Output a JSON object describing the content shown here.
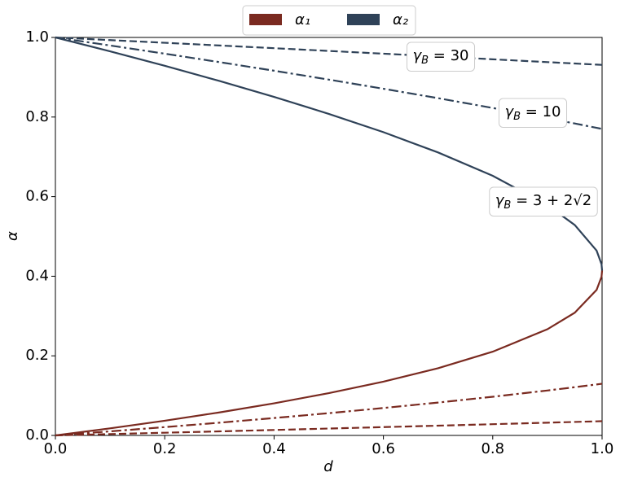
{
  "chart_data": {
    "type": "line",
    "xlabel": "d",
    "ylabel": "α",
    "xlim": [
      0,
      1
    ],
    "ylim": [
      0,
      1
    ],
    "xticks": [
      {
        "value": 0,
        "label": "0.0"
      },
      0.2,
      0.4,
      0.6,
      0.8,
      {
        "value": 1,
        "label": "1.0"
      }
    ],
    "yticks": [
      {
        "value": 0,
        "label": "0.0"
      },
      0.2,
      0.4,
      0.6,
      0.8,
      {
        "value": 1,
        "label": "1.0"
      }
    ],
    "grid": false,
    "legend_position": "top",
    "legend": [
      {
        "name": "α₁",
        "color": "#7a2a20"
      },
      {
        "name": "α₂",
        "color": "#2f4258"
      }
    ],
    "x": [
      0,
      0.1,
      0.2,
      0.3,
      0.4,
      0.5,
      0.6,
      0.7,
      0.8,
      0.9,
      0.95,
      0.99,
      0.999,
      1
    ],
    "curves": [
      {
        "label": [
          "γ",
          "B",
          " = 3 + 2√2"
        ],
        "dash": "solid",
        "alpha1": [
          0,
          0.0178,
          0.0369,
          0.0578,
          0.0807,
          0.1062,
          0.1351,
          0.1689,
          0.2104,
          0.2668,
          0.3083,
          0.3658,
          0.3984,
          0.4142
        ],
        "alpha2": [
          1,
          0.9651,
          0.9287,
          0.8907,
          0.8507,
          0.808,
          0.762,
          0.711,
          0.6523,
          0.5788,
          0.5287,
          0.4643,
          0.4303,
          0.4142
        ]
      },
      {
        "label": [
          "γ",
          "B",
          " = 10"
        ],
        "dash": "dashdot",
        "alpha1": [
          0,
          0.0102,
          0.0209,
          0.032,
          0.0437,
          0.0559,
          0.0689,
          0.0826,
          0.0972,
          0.1129,
          0.1212,
          0.1281,
          0.1297,
          0.1298
        ],
        "alpha2": [
          1,
          0.9798,
          0.9592,
          0.938,
          0.9164,
          0.8941,
          0.8711,
          0.8474,
          0.8228,
          0.7971,
          0.7838,
          0.7729,
          0.7704,
          0.7702
        ]
      },
      {
        "label": [
          "γ",
          "B",
          " = 30"
        ],
        "dash": "dashed",
        "alpha1": [
          0,
          0.0034,
          0.0068,
          0.0102,
          0.0137,
          0.0173,
          0.0209,
          0.0245,
          0.0282,
          0.032,
          0.0339,
          0.0354,
          0.0358,
          0.0358
        ],
        "alpha2": [
          1,
          0.9933,
          0.9866,
          0.9798,
          0.973,
          0.9661,
          0.9592,
          0.9522,
          0.9451,
          0.938,
          0.9345,
          0.9317,
          0.9311,
          0.931
        ]
      }
    ]
  }
}
